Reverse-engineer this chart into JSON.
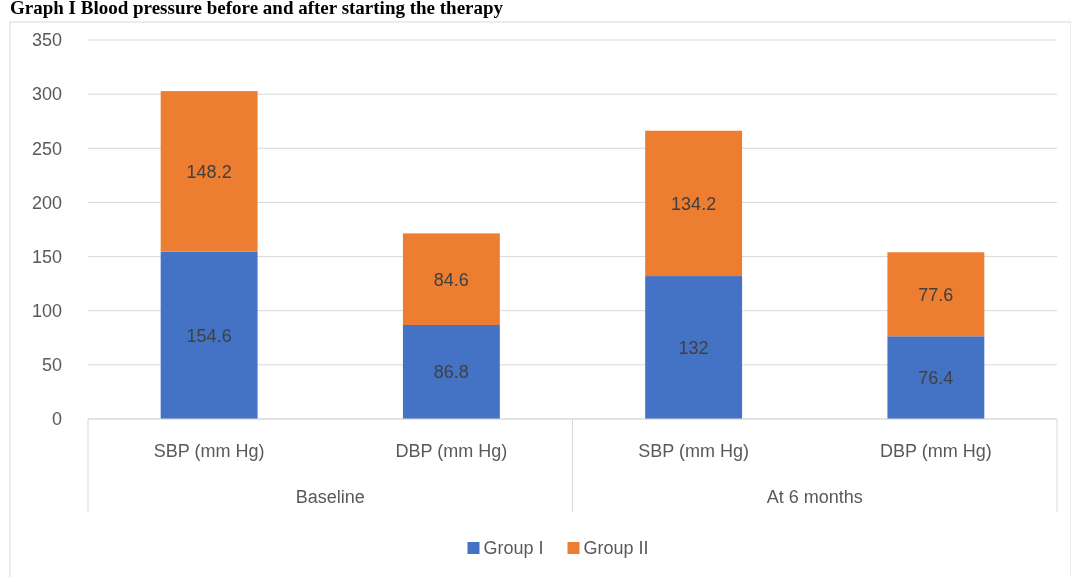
{
  "chart_data": {
    "type": "bar",
    "title": "Graph I Blood pressure before and after starting the therapy",
    "categories": [
      "SBP (mm Hg)",
      "DBP (mm Hg)",
      "SBP (mm Hg)",
      "DBP (mm Hg)"
    ],
    "annotations": [
      "Baseline",
      "At 6 months"
    ],
    "stacked": true,
    "series": [
      {
        "name": "Group I",
        "color": "#4472c4",
        "values": [
          154.6,
          86.8,
          132,
          76.4
        ]
      },
      {
        "name": "Group II",
        "color": "#ed7d31",
        "values": [
          148.2,
          84.6,
          134.2,
          77.6
        ]
      }
    ],
    "ylim": [
      0,
      350
    ],
    "yticks": [
      0,
      50,
      100,
      150,
      200,
      250,
      300,
      350
    ],
    "grid": "y",
    "data_labels": true,
    "legend": "bottom"
  }
}
